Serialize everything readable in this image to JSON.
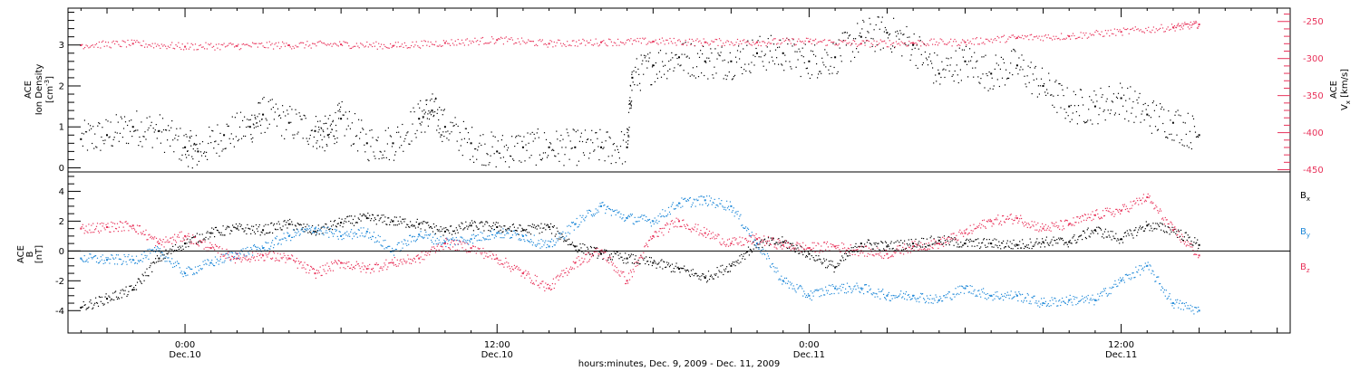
{
  "chart_data": [
    {
      "type": "scatter",
      "panel": "top",
      "left_axis_label": {
        "line1": "ACE",
        "line2": "Ion Density",
        "units": "[cm",
        "units_exp": "-3",
        "units_end": "]"
      },
      "right_axis_label": {
        "line1": "ACE",
        "var": "V",
        "var_sub": "x",
        "units": "[km/s]"
      },
      "left_yticks": [
        "0",
        "1",
        "2",
        "3"
      ],
      "right_yticks": [
        "-250",
        "-300",
        "-350",
        "-400",
        "-450"
      ],
      "left_ylim": [
        -0.1,
        3.9
      ],
      "right_ylim": [
        -453,
        -232
      ],
      "x_hours_range": [
        -4.5,
        42.5
      ],
      "series": [
        {
          "axis": "left",
          "color": "#000000",
          "points": [
            [
              -4.0,
              0.7
            ],
            [
              -3.0,
              0.8
            ],
            [
              -2.0,
              1.0
            ],
            [
              -1.0,
              0.9
            ],
            [
              0.0,
              0.5
            ],
            [
              0.5,
              0.4
            ],
            [
              1.5,
              0.8
            ],
            [
              2.5,
              1.0
            ],
            [
              3.0,
              1.3
            ],
            [
              4.0,
              1.1
            ],
            [
              5.0,
              0.9
            ],
            [
              5.5,
              0.8
            ],
            [
              6.0,
              1.2
            ],
            [
              7.0,
              0.6
            ],
            [
              8.0,
              0.6
            ],
            [
              9.0,
              1.2
            ],
            [
              9.5,
              1.4
            ],
            [
              10.0,
              1.0
            ],
            [
              11.0,
              0.6
            ],
            [
              12.0,
              0.4
            ],
            [
              13.0,
              0.5
            ],
            [
              14.0,
              0.5
            ],
            [
              15.0,
              0.5
            ],
            [
              16.0,
              0.5
            ],
            [
              17.0,
              0.5
            ],
            [
              17.2,
              2.2
            ],
            [
              18.0,
              2.5
            ],
            [
              19.0,
              2.7
            ],
            [
              20.0,
              2.6
            ],
            [
              21.0,
              2.6
            ],
            [
              22.0,
              2.8
            ],
            [
              23.0,
              2.8
            ],
            [
              24.0,
              2.6
            ],
            [
              25.0,
              2.7
            ],
            [
              26.0,
              3.2
            ],
            [
              27.0,
              3.3
            ],
            [
              28.0,
              3.0
            ],
            [
              29.0,
              2.3
            ],
            [
              30.0,
              2.6
            ],
            [
              31.0,
              2.3
            ],
            [
              32.0,
              2.5
            ],
            [
              33.0,
              2.0
            ],
            [
              34.0,
              1.5
            ],
            [
              35.0,
              1.5
            ],
            [
              36.0,
              1.7
            ],
            [
              37.0,
              1.3
            ],
            [
              38.0,
              1.1
            ],
            [
              39.0,
              0.8
            ]
          ]
        },
        {
          "axis": "right",
          "color": "#e8325a",
          "points": [
            [
              -4.0,
              -282
            ],
            [
              -2.0,
              -280
            ],
            [
              0.0,
              -284
            ],
            [
              2.0,
              -283
            ],
            [
              4.0,
              -282
            ],
            [
              6.0,
              -281
            ],
            [
              8.0,
              -283
            ],
            [
              10.0,
              -279
            ],
            [
              12.0,
              -275
            ],
            [
              14.0,
              -280
            ],
            [
              16.0,
              -278
            ],
            [
              18.0,
              -277
            ],
            [
              20.0,
              -278
            ],
            [
              22.0,
              -278
            ],
            [
              24.0,
              -277
            ],
            [
              26.0,
              -280
            ],
            [
              28.0,
              -279
            ],
            [
              30.0,
              -278
            ],
            [
              32.0,
              -272
            ],
            [
              34.0,
              -270
            ],
            [
              36.0,
              -264
            ],
            [
              38.0,
              -258
            ],
            [
              39.0,
              -254
            ]
          ]
        }
      ]
    },
    {
      "type": "scatter",
      "panel": "bottom",
      "left_axis_label": {
        "line1": "ACE",
        "var": "B",
        "units": "[nT]"
      },
      "yticks": [
        "4",
        "2",
        "0",
        "-2",
        "-4"
      ],
      "ylim": [
        -5.5,
        5.3
      ],
      "x_hours_range": [
        -4.5,
        42.5
      ],
      "zero_line": true,
      "series": [
        {
          "name": "B",
          "sub": "x",
          "color": "#000000",
          "points": [
            [
              -4.0,
              -3.8
            ],
            [
              -3.0,
              -3.2
            ],
            [
              -2.0,
              -2.6
            ],
            [
              -1.0,
              -0.5
            ],
            [
              0.0,
              0.5
            ],
            [
              1.0,
              1.2
            ],
            [
              2.0,
              1.5
            ],
            [
              3.0,
              1.4
            ],
            [
              4.0,
              1.8
            ],
            [
              5.0,
              1.3
            ],
            [
              6.0,
              1.9
            ],
            [
              7.0,
              2.2
            ],
            [
              8.0,
              2.0
            ],
            [
              9.0,
              1.8
            ],
            [
              10.0,
              1.3
            ],
            [
              11.0,
              1.7
            ],
            [
              12.0,
              1.6
            ],
            [
              13.0,
              1.4
            ],
            [
              14.0,
              1.6
            ],
            [
              15.0,
              0.3
            ],
            [
              16.0,
              -0.2
            ],
            [
              17.0,
              -0.5
            ],
            [
              18.0,
              -0.8
            ],
            [
              19.0,
              -1.2
            ],
            [
              20.0,
              -1.8
            ],
            [
              21.0,
              -1.0
            ],
            [
              22.0,
              0.5
            ],
            [
              23.0,
              0.6
            ],
            [
              24.0,
              -0.2
            ],
            [
              25.0,
              -1.1
            ],
            [
              26.0,
              0.5
            ],
            [
              27.0,
              0.3
            ],
            [
              28.0,
              0.5
            ],
            [
              29.0,
              0.7
            ],
            [
              30.0,
              0.5
            ],
            [
              31.0,
              0.5
            ],
            [
              32.0,
              0.4
            ],
            [
              33.0,
              0.6
            ],
            [
              34.0,
              0.6
            ],
            [
              35.0,
              1.4
            ],
            [
              36.0,
              0.8
            ],
            [
              37.0,
              1.7
            ],
            [
              38.0,
              1.4
            ],
            [
              39.0,
              0.4
            ]
          ]
        },
        {
          "name": "B",
          "sub": "y",
          "color": "#1e88d8",
          "points": [
            [
              -4.0,
              -0.5
            ],
            [
              -3.0,
              -0.6
            ],
            [
              -2.0,
              -0.6
            ],
            [
              -1.0,
              0.0
            ],
            [
              0.0,
              -1.5
            ],
            [
              1.0,
              -0.8
            ],
            [
              2.0,
              -0.2
            ],
            [
              3.0,
              0.2
            ],
            [
              4.0,
              1.0
            ],
            [
              5.0,
              1.5
            ],
            [
              6.0,
              1.0
            ],
            [
              7.0,
              1.3
            ],
            [
              8.0,
              0.0
            ],
            [
              9.0,
              1.1
            ],
            [
              10.0,
              0.6
            ],
            [
              11.0,
              0.8
            ],
            [
              12.0,
              1.2
            ],
            [
              13.0,
              1.0
            ],
            [
              14.0,
              0.3
            ],
            [
              15.0,
              1.8
            ],
            [
              16.0,
              3.0
            ],
            [
              17.0,
              2.2
            ],
            [
              18.0,
              2.0
            ],
            [
              19.0,
              3.2
            ],
            [
              20.0,
              3.4
            ],
            [
              21.0,
              3.0
            ],
            [
              22.0,
              0.5
            ],
            [
              23.0,
              -2.0
            ],
            [
              24.0,
              -3.0
            ],
            [
              25.0,
              -2.5
            ],
            [
              26.0,
              -2.5
            ],
            [
              27.0,
              -3.0
            ],
            [
              28.0,
              -3.0
            ],
            [
              29.0,
              -3.3
            ],
            [
              30.0,
              -2.5
            ],
            [
              31.0,
              -3.0
            ],
            [
              32.0,
              -3.0
            ],
            [
              33.0,
              -3.5
            ],
            [
              34.0,
              -3.3
            ],
            [
              35.0,
              -3.3
            ],
            [
              36.0,
              -2.0
            ],
            [
              37.0,
              -1.0
            ],
            [
              38.0,
              -3.5
            ],
            [
              39.0,
              -4.0
            ]
          ]
        },
        {
          "name": "B",
          "sub": "z",
          "color": "#e8325a",
          "points": [
            [
              -4.0,
              1.5
            ],
            [
              -3.0,
              1.6
            ],
            [
              -2.0,
              1.7
            ],
            [
              -1.0,
              0.5
            ],
            [
              0.0,
              1.0
            ],
            [
              1.0,
              0.2
            ],
            [
              2.0,
              -0.5
            ],
            [
              3.0,
              -0.3
            ],
            [
              4.0,
              -0.5
            ],
            [
              5.0,
              -1.5
            ],
            [
              6.0,
              -0.8
            ],
            [
              7.0,
              -1.2
            ],
            [
              8.0,
              -0.8
            ],
            [
              9.0,
              -0.5
            ],
            [
              10.0,
              0.5
            ],
            [
              11.0,
              0.2
            ],
            [
              12.0,
              -0.5
            ],
            [
              13.0,
              -1.5
            ],
            [
              14.0,
              -2.5
            ],
            [
              15.0,
              -0.8
            ],
            [
              16.0,
              0.0
            ],
            [
              17.0,
              -2.0
            ],
            [
              18.0,
              1.0
            ],
            [
              19.0,
              2.0
            ],
            [
              20.0,
              1.2
            ],
            [
              21.0,
              0.5
            ],
            [
              22.0,
              0.8
            ],
            [
              23.0,
              0.4
            ],
            [
              24.0,
              0.2
            ],
            [
              25.0,
              0.3
            ],
            [
              26.0,
              0.0
            ],
            [
              27.0,
              -0.2
            ],
            [
              28.0,
              0.3
            ],
            [
              29.0,
              0.5
            ],
            [
              30.0,
              1.2
            ],
            [
              31.0,
              2.0
            ],
            [
              32.0,
              2.2
            ],
            [
              33.0,
              1.5
            ],
            [
              34.0,
              1.8
            ],
            [
              35.0,
              2.4
            ],
            [
              36.0,
              2.7
            ],
            [
              37.0,
              3.6
            ],
            [
              38.0,
              1.4
            ],
            [
              39.0,
              -0.3
            ]
          ]
        }
      ]
    }
  ],
  "x_axis": {
    "ticks": [
      {
        "hour": 0,
        "time": "0:00",
        "date": "Dec.10"
      },
      {
        "hour": 12,
        "time": "12:00",
        "date": "Dec.10"
      },
      {
        "hour": 24,
        "time": "0:00",
        "date": "Dec.11"
      },
      {
        "hour": 36,
        "time": "12:00",
        "date": "Dec.11"
      }
    ],
    "label": "hours:minutes, Dec. 9, 2009 - Dec. 11, 2009"
  }
}
